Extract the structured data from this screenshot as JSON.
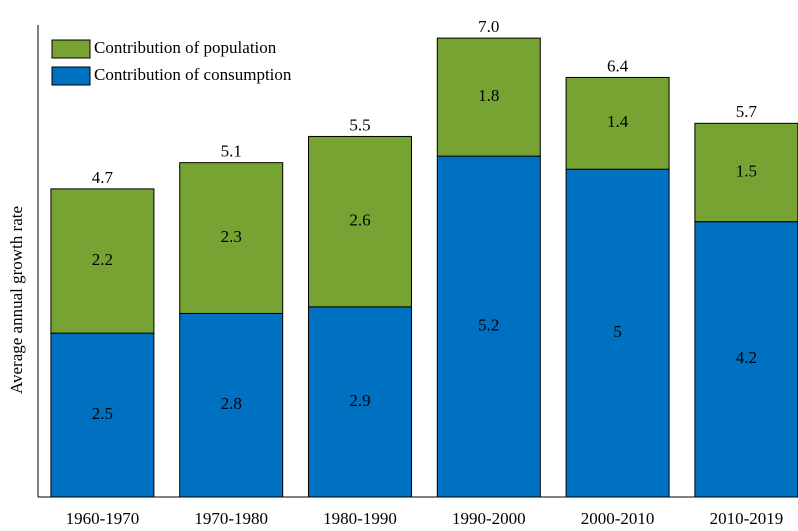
{
  "chart_data": {
    "type": "stacked_bar",
    "y_label": "Average annual growth rate",
    "categories": [
      "1960-1970",
      "1970-1980",
      "1980-1990",
      "1990-2000",
      "2000-2010",
      "2010-2019"
    ],
    "series": [
      {
        "name": "Contribution of consumption",
        "color": "#0070c0",
        "values": [
          2.5,
          2.8,
          2.9,
          5.2,
          5.0,
          4.2
        ]
      },
      {
        "name": "Contribution of population",
        "color": "#77a332",
        "values": [
          2.2,
          2.3,
          2.6,
          1.8,
          1.4,
          1.5
        ]
      }
    ],
    "totals": [
      4.7,
      5.1,
      5.5,
      7.0,
      6.4,
      5.7
    ],
    "total_labels": [
      "4.7",
      "5.1",
      "5.5",
      "7.0",
      "6.4",
      "5.7"
    ],
    "ylim": [
      0,
      7.2
    ],
    "legend": "top-left"
  }
}
